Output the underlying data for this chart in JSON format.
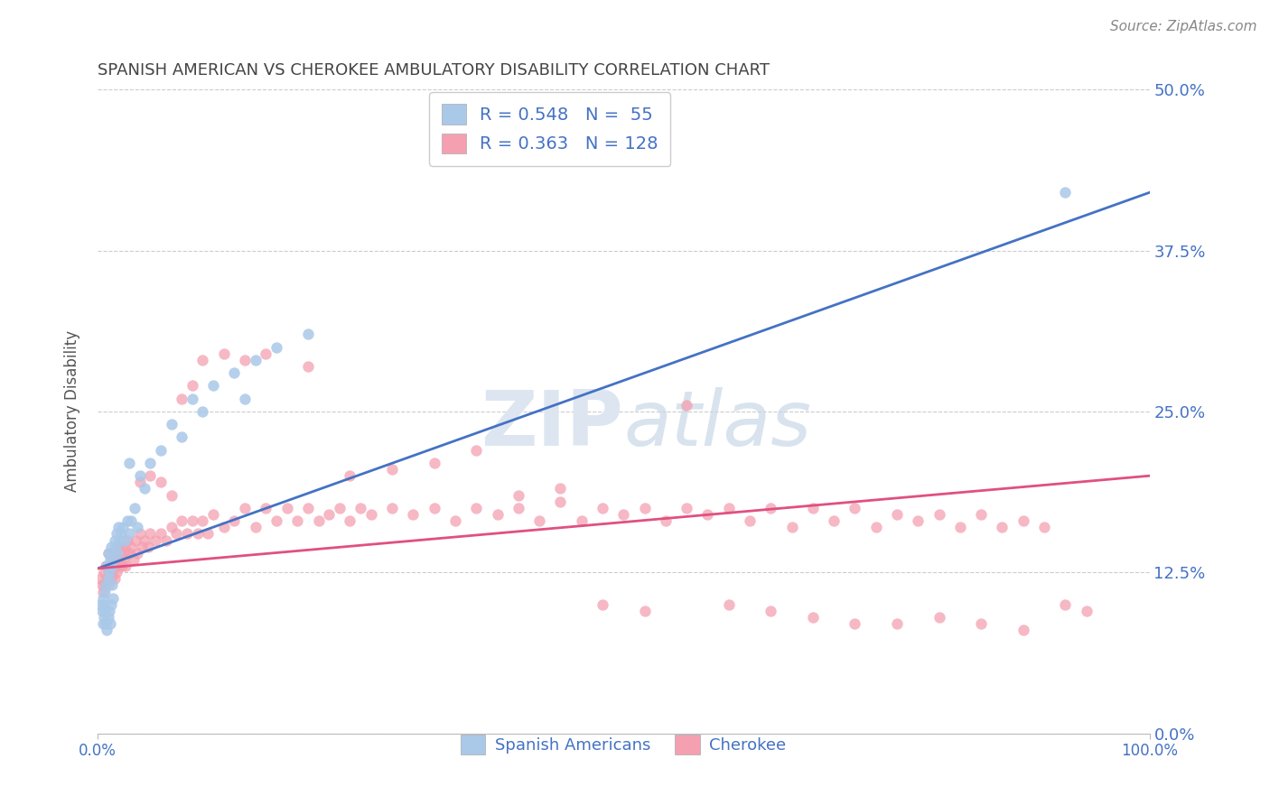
{
  "title": "SPANISH AMERICAN VS CHEROKEE AMBULATORY DISABILITY CORRELATION CHART",
  "source": "Source: ZipAtlas.com",
  "ylabel": "Ambulatory Disability",
  "xlim": [
    0,
    1.0
  ],
  "ylim": [
    0,
    0.5
  ],
  "ytick_labels": [
    "0.0%",
    "12.5%",
    "25.0%",
    "37.5%",
    "50.0%"
  ],
  "ytick_vals": [
    0.0,
    0.125,
    0.25,
    0.375,
    0.5
  ],
  "blue_R": 0.548,
  "blue_N": 55,
  "pink_R": 0.363,
  "pink_N": 128,
  "blue_color": "#aac8e8",
  "pink_color": "#f4a0b0",
  "blue_line_color": "#4472c4",
  "pink_line_color": "#e05080",
  "title_color": "#444444",
  "axis_label_color": "#555555",
  "tick_color": "#4472c4",
  "grid_color": "#cccccc",
  "watermark_color": "#dde6f0",
  "legend_text_color": "#4472c4",
  "source_color": "#888888",
  "background_color": "#ffffff",
  "blue_line_x0": 0.0,
  "blue_line_y0": 0.128,
  "blue_line_x1": 1.0,
  "blue_line_y1": 0.42,
  "pink_line_x0": 0.0,
  "pink_line_y0": 0.128,
  "pink_line_x1": 1.0,
  "pink_line_y1": 0.2,
  "blue_scatter_x": [
    0.003,
    0.004,
    0.005,
    0.005,
    0.006,
    0.006,
    0.007,
    0.007,
    0.008,
    0.008,
    0.009,
    0.009,
    0.01,
    0.01,
    0.01,
    0.011,
    0.011,
    0.012,
    0.012,
    0.013,
    0.013,
    0.014,
    0.014,
    0.015,
    0.015,
    0.016,
    0.017,
    0.018,
    0.019,
    0.02,
    0.021,
    0.022,
    0.024,
    0.026,
    0.028,
    0.03,
    0.032,
    0.035,
    0.038,
    0.04,
    0.045,
    0.05,
    0.06,
    0.07,
    0.08,
    0.09,
    0.1,
    0.11,
    0.13,
    0.14,
    0.15,
    0.17,
    0.2,
    0.03,
    0.92
  ],
  "blue_scatter_y": [
    0.1,
    0.095,
    0.085,
    0.105,
    0.09,
    0.1,
    0.095,
    0.11,
    0.085,
    0.115,
    0.08,
    0.13,
    0.09,
    0.12,
    0.14,
    0.095,
    0.125,
    0.085,
    0.135,
    0.1,
    0.145,
    0.115,
    0.13,
    0.105,
    0.14,
    0.15,
    0.145,
    0.155,
    0.14,
    0.16,
    0.15,
    0.155,
    0.16,
    0.15,
    0.165,
    0.155,
    0.165,
    0.175,
    0.16,
    0.2,
    0.19,
    0.21,
    0.22,
    0.24,
    0.23,
    0.26,
    0.25,
    0.27,
    0.28,
    0.26,
    0.29,
    0.3,
    0.31,
    0.21,
    0.42
  ],
  "pink_scatter_x": [
    0.003,
    0.004,
    0.005,
    0.006,
    0.007,
    0.008,
    0.009,
    0.01,
    0.01,
    0.011,
    0.012,
    0.013,
    0.014,
    0.015,
    0.016,
    0.017,
    0.018,
    0.019,
    0.02,
    0.021,
    0.022,
    0.023,
    0.024,
    0.025,
    0.026,
    0.027,
    0.028,
    0.03,
    0.032,
    0.034,
    0.036,
    0.038,
    0.04,
    0.042,
    0.045,
    0.048,
    0.05,
    0.055,
    0.06,
    0.065,
    0.07,
    0.075,
    0.08,
    0.085,
    0.09,
    0.095,
    0.1,
    0.105,
    0.11,
    0.12,
    0.13,
    0.14,
    0.15,
    0.16,
    0.17,
    0.18,
    0.19,
    0.2,
    0.21,
    0.22,
    0.23,
    0.24,
    0.25,
    0.26,
    0.28,
    0.3,
    0.32,
    0.34,
    0.36,
    0.38,
    0.4,
    0.42,
    0.44,
    0.46,
    0.48,
    0.5,
    0.52,
    0.54,
    0.56,
    0.58,
    0.6,
    0.62,
    0.64,
    0.66,
    0.68,
    0.7,
    0.72,
    0.74,
    0.76,
    0.78,
    0.8,
    0.82,
    0.84,
    0.86,
    0.88,
    0.9,
    0.92,
    0.94,
    0.02,
    0.03,
    0.04,
    0.05,
    0.06,
    0.07,
    0.08,
    0.09,
    0.1,
    0.12,
    0.14,
    0.16,
    0.2,
    0.24,
    0.28,
    0.32,
    0.36,
    0.4,
    0.44,
    0.48,
    0.52,
    0.56,
    0.6,
    0.64,
    0.68,
    0.72,
    0.76,
    0.8,
    0.84,
    0.88
  ],
  "pink_scatter_y": [
    0.12,
    0.115,
    0.11,
    0.125,
    0.115,
    0.13,
    0.12,
    0.115,
    0.14,
    0.125,
    0.13,
    0.12,
    0.125,
    0.135,
    0.12,
    0.13,
    0.125,
    0.14,
    0.135,
    0.13,
    0.145,
    0.13,
    0.14,
    0.135,
    0.145,
    0.13,
    0.15,
    0.14,
    0.145,
    0.135,
    0.15,
    0.14,
    0.155,
    0.145,
    0.15,
    0.145,
    0.155,
    0.15,
    0.155,
    0.15,
    0.16,
    0.155,
    0.165,
    0.155,
    0.165,
    0.155,
    0.165,
    0.155,
    0.17,
    0.16,
    0.165,
    0.175,
    0.16,
    0.175,
    0.165,
    0.175,
    0.165,
    0.175,
    0.165,
    0.17,
    0.175,
    0.165,
    0.175,
    0.17,
    0.175,
    0.17,
    0.175,
    0.165,
    0.175,
    0.17,
    0.175,
    0.165,
    0.18,
    0.165,
    0.175,
    0.17,
    0.175,
    0.165,
    0.175,
    0.17,
    0.175,
    0.165,
    0.175,
    0.16,
    0.175,
    0.165,
    0.175,
    0.16,
    0.17,
    0.165,
    0.17,
    0.16,
    0.17,
    0.16,
    0.165,
    0.16,
    0.1,
    0.095,
    0.145,
    0.14,
    0.195,
    0.2,
    0.195,
    0.185,
    0.26,
    0.27,
    0.29,
    0.295,
    0.29,
    0.295,
    0.285,
    0.2,
    0.205,
    0.21,
    0.22,
    0.185,
    0.19,
    0.1,
    0.095,
    0.255,
    0.1,
    0.095,
    0.09,
    0.085,
    0.085,
    0.09,
    0.085,
    0.08
  ]
}
